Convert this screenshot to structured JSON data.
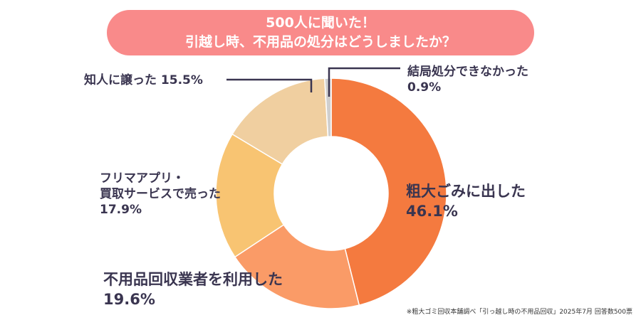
{
  "title": {
    "line1": "500人に聞いた！",
    "line2": "引越し時、不用品の処分はどうしましたか？"
  },
  "chart_data": {
    "type": "pie",
    "style": "donut",
    "title": "500人に聞いた！引越し時、不用品の処分はどうしましたか？",
    "slices": [
      {
        "label": "粗大ごみに出した",
        "value": 46.1,
        "value_label": "46.1%",
        "color": "#f47a3f"
      },
      {
        "label": "不用品回収業者を利用した",
        "value": 19.6,
        "value_label": "19.6%",
        "color": "#fa9b67"
      },
      {
        "label": "フリマアプリ・買取サービスで売った",
        "label_line1": "フリマアプリ・",
        "label_line2": "買取サービスで売った",
        "value": 17.9,
        "value_label": "17.9%",
        "color": "#f8c472"
      },
      {
        "label": "知人に譲った",
        "value": 15.5,
        "value_label": "15.5%",
        "color": "#f0cfa0"
      },
      {
        "label": "結局処分できなかった",
        "value": 0.9,
        "value_label": "0.9%",
        "color": "#cfcfcf"
      }
    ]
  },
  "footnote": "※粗大ゴミ回収本舗調べ「引っ越し時の不用品回収」2025年7月 回答数500票"
}
